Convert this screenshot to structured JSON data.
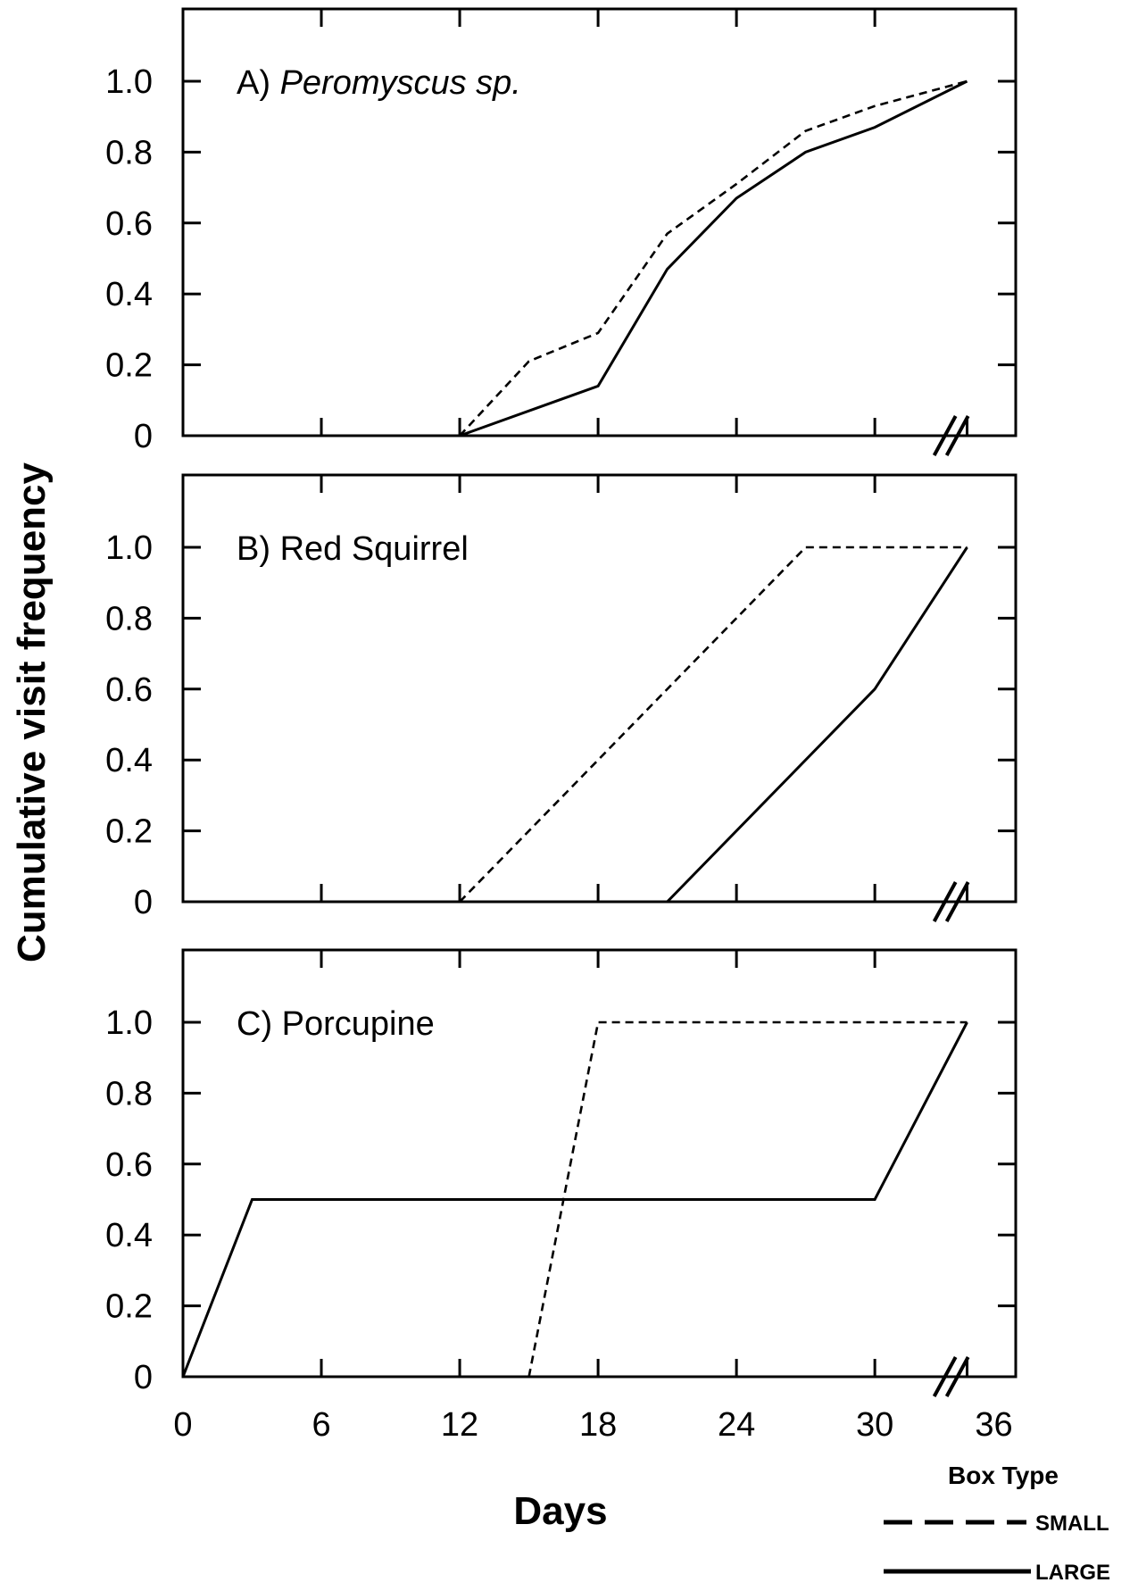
{
  "chart_data": {
    "type": "line",
    "ylabel": "Cumulative visit frequency",
    "xlabel": "Days",
    "xlim": [
      0,
      36
    ],
    "ylim": [
      0,
      1.2
    ],
    "x_ticks": [
      0,
      6,
      12,
      18,
      24,
      30,
      36
    ],
    "y_ticks": [
      0,
      0.2,
      0.4,
      0.6,
      0.8,
      1.0
    ],
    "y_tick_labels": [
      "0",
      "0.2",
      "0.4",
      "0.6",
      "0.8",
      "1.0"
    ],
    "x_tick_labels": [
      "0",
      "6",
      "12",
      "18",
      "24",
      "30",
      "36"
    ],
    "axis_break": "between 30 and 36",
    "legend": {
      "title": "Box Type",
      "placement": "bottom-right",
      "entries": [
        {
          "label": "SMALL",
          "style": "dashed"
        },
        {
          "label": "LARGE",
          "style": "solid"
        }
      ]
    },
    "panels": [
      {
        "prefix": "A)",
        "title": "Peromyscus sp.",
        "title_italic": true,
        "series": [
          {
            "name": "SMALL",
            "style": "dashed",
            "points": [
              [
                12,
                0
              ],
              [
                15,
                0.21
              ],
              [
                18,
                0.29
              ],
              [
                21,
                0.57
              ],
              [
                24,
                0.71
              ],
              [
                27,
                0.86
              ],
              [
                30,
                0.93
              ],
              [
                34,
                1.0
              ]
            ]
          },
          {
            "name": "LARGE",
            "style": "solid",
            "points": [
              [
                12,
                0
              ],
              [
                18,
                0.14
              ],
              [
                21,
                0.47
              ],
              [
                24,
                0.67
              ],
              [
                27,
                0.8
              ],
              [
                30,
                0.87
              ],
              [
                34,
                1.0
              ]
            ]
          }
        ]
      },
      {
        "prefix": "B)",
        "title": "Red Squirrel",
        "title_italic": false,
        "series": [
          {
            "name": "SMALL",
            "style": "dashed",
            "points": [
              [
                12,
                0
              ],
              [
                27,
                1.0
              ],
              [
                34,
                1.0
              ]
            ]
          },
          {
            "name": "LARGE",
            "style": "solid",
            "points": [
              [
                21,
                0
              ],
              [
                30,
                0.6
              ],
              [
                34,
                1.0
              ]
            ]
          }
        ]
      },
      {
        "prefix": "C)",
        "title": "Porcupine",
        "title_italic": false,
        "series": [
          {
            "name": "SMALL",
            "style": "dashed",
            "points": [
              [
                15,
                0
              ],
              [
                18,
                1.0
              ],
              [
                34,
                1.0
              ]
            ]
          },
          {
            "name": "LARGE",
            "style": "solid",
            "points": [
              [
                0,
                0
              ],
              [
                3,
                0.5
              ],
              [
                30,
                0.5
              ],
              [
                34,
                1.0
              ]
            ]
          }
        ]
      }
    ]
  }
}
